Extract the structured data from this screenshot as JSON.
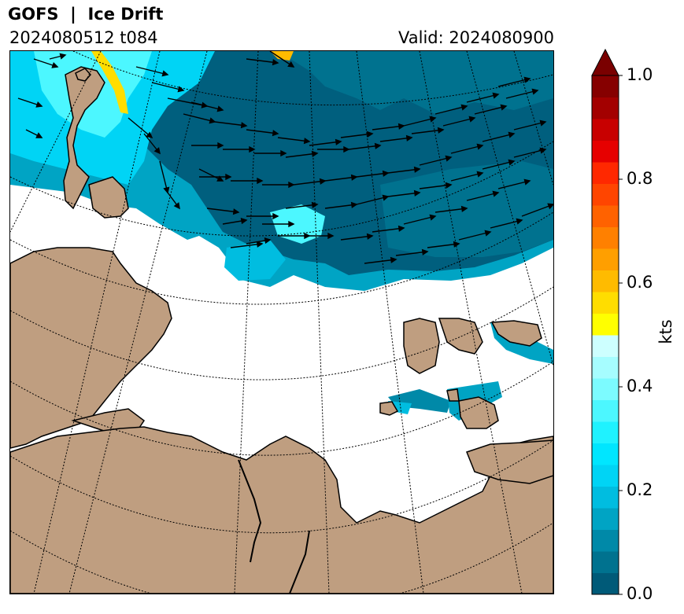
{
  "header": {
    "title": "GOFS  |  Ice Drift",
    "run": "2024080512 t084",
    "valid": "Valid: 2024080900"
  },
  "colorbar": {
    "unit": "kts",
    "min": 0.0,
    "max": 1.0,
    "ticks": [
      {
        "value": 0.0,
        "label": "0.0"
      },
      {
        "value": 0.2,
        "label": "0.2"
      },
      {
        "value": 0.4,
        "label": "0.4"
      },
      {
        "value": 0.6,
        "label": "0.6"
      },
      {
        "value": 0.8,
        "label": "0.8"
      },
      {
        "value": 1.0,
        "label": "1.0"
      }
    ],
    "colors": [
      "#005a78",
      "#00728f",
      "#0089a8",
      "#00a4c4",
      "#00bde0",
      "#00d4f5",
      "#00e6ff",
      "#1ff2ff",
      "#4cf7ff",
      "#7cfbff",
      "#a6fdff",
      "#cdffff",
      "#ffff00",
      "#ffdd00",
      "#ffbb00",
      "#ff9f00",
      "#ff8000",
      "#ff6200",
      "#ff4500",
      "#ff2800",
      "#e60000",
      "#c80000",
      "#a30000",
      "#860000"
    ],
    "extend_color": "#7a0000"
  },
  "map": {
    "land_color": "#bf9e80",
    "coast_color": "#000000",
    "graticule": "dotted"
  }
}
